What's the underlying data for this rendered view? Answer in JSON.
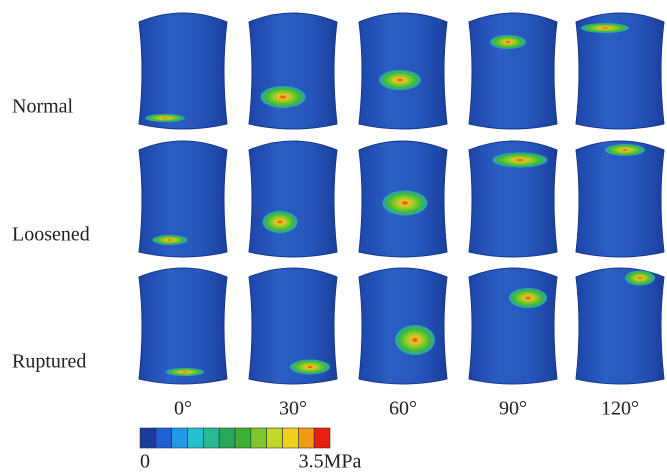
{
  "rows": [
    "Normal",
    "Loosened",
    "Ruptured"
  ],
  "columns": [
    "0°",
    "30°",
    "60°",
    "90°",
    "120°"
  ],
  "colorbar": {
    "min_label": "0",
    "max_label": "3.5MPa",
    "colors": [
      "#1a3a9c",
      "#1f5fd0",
      "#2299e8",
      "#25c0d0",
      "#2ab896",
      "#28a85a",
      "#3cb030",
      "#7ec62a",
      "#c0d82a",
      "#f0d020",
      "#f09a18",
      "#e82010"
    ]
  }
}
